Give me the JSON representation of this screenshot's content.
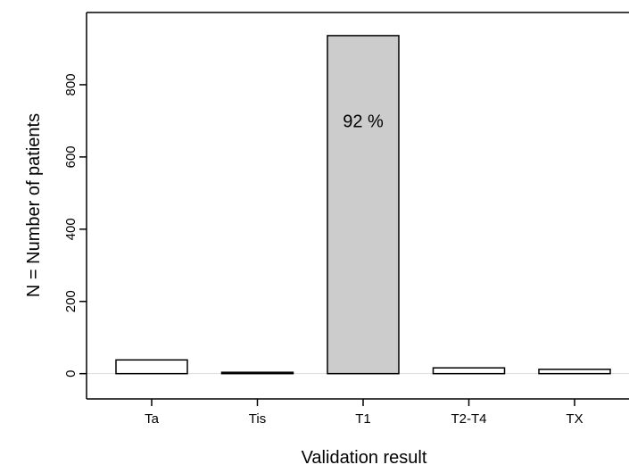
{
  "chart_data": {
    "type": "bar",
    "categories": [
      "Ta",
      "Tis",
      "T1",
      "T2-T4",
      "TX"
    ],
    "values": [
      38,
      2,
      936,
      16,
      12
    ],
    "highlight_index": 2,
    "colors": {
      "default_fill": "#ffffff",
      "highlight_fill": "#cccccc",
      "stroke": "#000000",
      "zero_line": "#dddddd"
    },
    "annotations": [
      {
        "category": "T1",
        "text": "92 %",
        "y": 675
      }
    ],
    "title": "",
    "xlabel": "Validation result",
    "ylabel": "N = Number of patients",
    "yticks": [
      0,
      200,
      400,
      600,
      800
    ],
    "ylim": [
      -70,
      1000
    ],
    "grid": false,
    "legend": "none"
  }
}
